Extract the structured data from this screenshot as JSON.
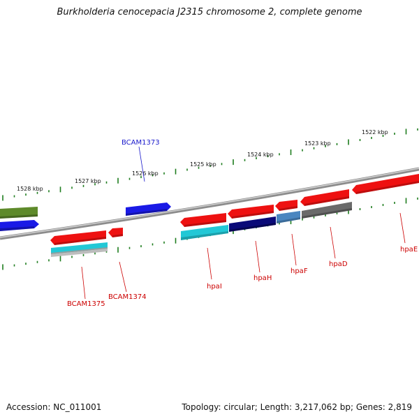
{
  "title": "Burkholderia cenocepacia J2315 chromosome 2, complete genome",
  "footer": {
    "accession": "Accession: NC_011001",
    "summary": "Topology: circular; Length: 3,217,062 bp; Genes: 2,819"
  },
  "scale_labels": [
    "1528 kbp",
    "1527 kbp",
    "1526 kbp",
    "1525 kbp",
    "1524 kbp",
    "1523 kbp",
    "1522 kbp"
  ],
  "colors": {
    "backbone": "#8c8c8c",
    "tick": "#1e7d1e",
    "red": "#ee1111",
    "blue": "#1a1ae6",
    "navy": "#0a0a78",
    "cyan": "#22c8d6",
    "steel": "#4a86c0",
    "gray": "#6a6a6a",
    "olive": "#5e8a2a",
    "label_red": "#cc0000",
    "label_blue": "#1a1acc"
  },
  "gene_labels": {
    "BCAM1373": "BCAM1373",
    "BCAM1375": "BCAM1375",
    "BCAM1374": "BCAM1374",
    "hpaI": "hpaI",
    "hpaH": "hpaH",
    "hpaF": "hpaF",
    "hpaD": "hpaD",
    "hpaE": "hpaE"
  }
}
